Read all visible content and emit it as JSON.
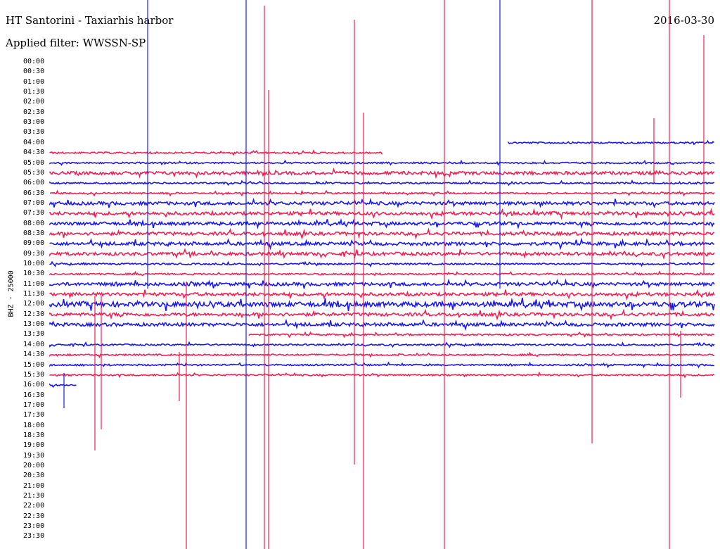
{
  "header": {
    "station": "HT Santorini - Taxiarhis harbor",
    "date": "2016-03-30",
    "filter": "Applied filter: WWSSN-SP"
  },
  "channel_label": "BHZ - 25000",
  "time_labels": [
    "00:00",
    "00:30",
    "01:00",
    "01:30",
    "02:00",
    "02:30",
    "03:00",
    "03:30",
    "04:00",
    "04:30",
    "05:00",
    "05:30",
    "06:00",
    "06:30",
    "07:00",
    "07:30",
    "08:00",
    "08:30",
    "09:00",
    "09:30",
    "10:00",
    "10:30",
    "11:00",
    "11:30",
    "12:00",
    "12:30",
    "13:00",
    "13:30",
    "14:00",
    "14:30",
    "15:00",
    "15:30",
    "16:00",
    "16:30",
    "17:00",
    "17:30",
    "18:00",
    "18:30",
    "19:00",
    "19:30",
    "20:00",
    "20:30",
    "21:00",
    "21:30",
    "22:00",
    "22:30",
    "23:00",
    "23:30"
  ],
  "colors": {
    "red": "#ee2255",
    "blue": "#1a1aee"
  },
  "trace_rows": [
    {
      "time": "04:00",
      "start": 0.69,
      "end": 1.0,
      "amp": 1
    },
    {
      "time": "04:30",
      "start": 0.0,
      "end": 0.5,
      "amp": 1
    },
    {
      "time": "05:00",
      "start": 0.0,
      "end": 1.0,
      "amp": 1
    },
    {
      "time": "05:30",
      "start": 0.0,
      "end": 1.0,
      "amp": 2
    },
    {
      "time": "06:00",
      "start": 0.0,
      "end": 1.0,
      "amp": 1
    },
    {
      "time": "06:30",
      "start": 0.0,
      "end": 1.0,
      "amp": 1
    },
    {
      "time": "07:00",
      "start": 0.0,
      "end": 1.0,
      "amp": 2
    },
    {
      "time": "07:30",
      "start": 0.0,
      "end": 1.0,
      "amp": 2
    },
    {
      "time": "08:00",
      "start": 0.0,
      "end": 1.0,
      "amp": 2
    },
    {
      "time": "08:30",
      "start": 0.0,
      "end": 1.0,
      "amp": 2
    },
    {
      "time": "09:00",
      "start": 0.0,
      "end": 1.0,
      "amp": 2
    },
    {
      "time": "09:30",
      "start": 0.0,
      "end": 1.0,
      "amp": 2
    },
    {
      "time": "10:00",
      "start": 0.0,
      "end": 1.0,
      "amp": 1
    },
    {
      "time": "10:30",
      "start": 0.0,
      "end": 1.0,
      "amp": 1
    },
    {
      "time": "11:00",
      "start": 0.0,
      "end": 1.0,
      "amp": 2
    },
    {
      "time": "11:30",
      "start": 0.0,
      "end": 1.0,
      "amp": 2
    },
    {
      "time": "12:00",
      "start": 0.0,
      "end": 1.0,
      "amp": 3
    },
    {
      "time": "12:30",
      "start": 0.0,
      "end": 1.0,
      "amp": 2
    },
    {
      "time": "13:00",
      "start": 0.0,
      "end": 1.0,
      "amp": 2
    },
    {
      "time": "13:30",
      "start": 0.3,
      "end": 1.0,
      "amp": 1
    },
    {
      "time": "14:00",
      "start": 0.0,
      "end": 1.0,
      "amp": 1
    },
    {
      "time": "14:30",
      "start": 0.0,
      "end": 1.0,
      "amp": 1
    },
    {
      "time": "15:00",
      "start": 0.0,
      "end": 1.0,
      "amp": 1
    },
    {
      "time": "15:30",
      "start": 0.0,
      "end": 1.0,
      "amp": 1
    },
    {
      "time": "16:00",
      "start": 0.0,
      "end": 0.04,
      "amp": 1
    }
  ]
}
